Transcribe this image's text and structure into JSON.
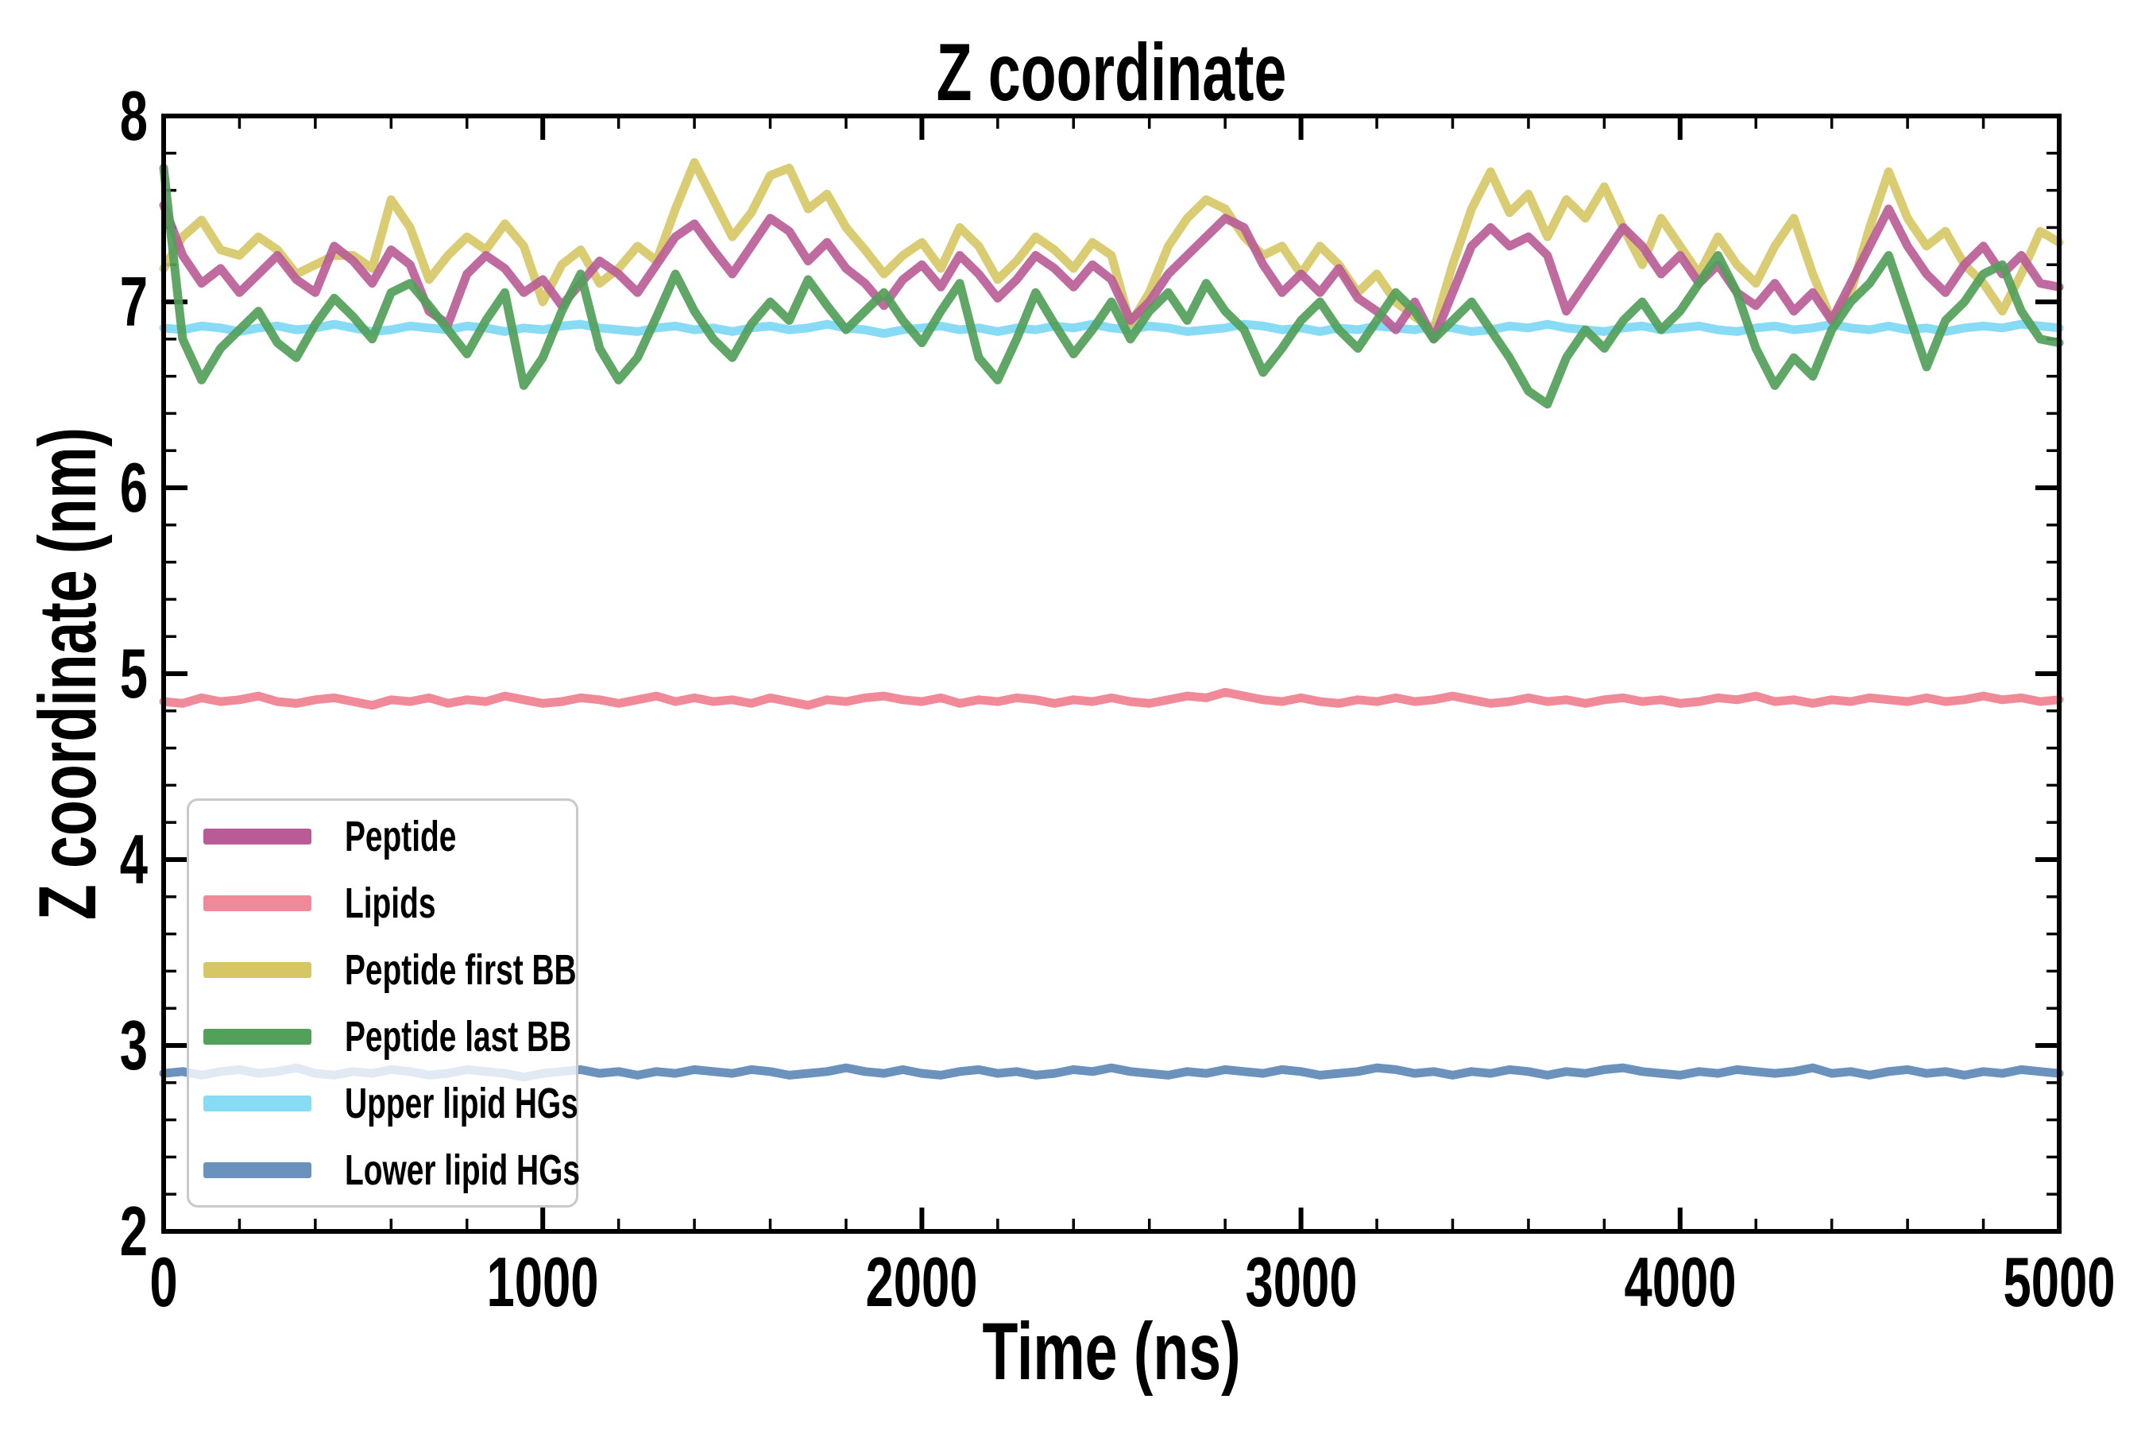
{
  "figure": {
    "background_color": "#ffffff",
    "axis_color": "#000000"
  },
  "chart_data": {
    "type": "line",
    "title": "Z coordinate",
    "xlabel": "Time (ns)",
    "ylabel": "Z coordinate (nm)",
    "xlim": [
      0,
      5000
    ],
    "ylim": [
      2,
      8
    ],
    "xticks": [
      0,
      1000,
      2000,
      3000,
      4000,
      5000
    ],
    "yticks": [
      2,
      3,
      4,
      5,
      6,
      7,
      8
    ],
    "x_minor_step": 200,
    "y_minor_step": 0.2,
    "grid": false,
    "legend_position": "lower left",
    "x_step": 50,
    "line_width": 11,
    "draw_order": [
      "Lipids",
      "Lower lipid HGs",
      "Upper lipid HGs",
      "Peptide first BB",
      "Peptide",
      "Peptide last BB"
    ],
    "series": [
      {
        "name": "Peptide",
        "color": "#b85b96",
        "opacity": 0.9,
        "values": [
          7.52,
          7.25,
          7.1,
          7.18,
          7.05,
          7.15,
          7.25,
          7.12,
          7.05,
          7.3,
          7.22,
          7.1,
          7.28,
          7.2,
          6.95,
          6.88,
          7.15,
          7.25,
          7.18,
          7.05,
          7.12,
          6.98,
          7.1,
          7.22,
          7.15,
          7.05,
          7.2,
          7.35,
          7.42,
          7.28,
          7.15,
          7.3,
          7.45,
          7.38,
          7.22,
          7.32,
          7.18,
          7.1,
          6.98,
          7.12,
          7.2,
          7.08,
          7.25,
          7.15,
          7.02,
          7.12,
          7.25,
          7.18,
          7.08,
          7.2,
          7.12,
          6.9,
          7.0,
          7.15,
          7.25,
          7.35,
          7.45,
          7.4,
          7.2,
          7.05,
          7.15,
          7.05,
          7.18,
          7.02,
          6.95,
          6.85,
          7.0,
          6.8,
          7.05,
          7.3,
          7.4,
          7.3,
          7.35,
          7.25,
          6.95,
          7.1,
          7.25,
          7.4,
          7.3,
          7.15,
          7.25,
          7.1,
          7.2,
          7.05,
          6.98,
          7.1,
          6.95,
          7.05,
          6.9,
          7.1,
          7.3,
          7.5,
          7.3,
          7.15,
          7.05,
          7.2,
          7.3,
          7.15,
          7.25,
          7.1,
          7.08
        ]
      },
      {
        "name": "Lipids",
        "color": "#f08a98",
        "opacity": 1,
        "values": [
          4.85,
          4.84,
          4.87,
          4.85,
          4.86,
          4.88,
          4.85,
          4.84,
          4.86,
          4.87,
          4.85,
          4.83,
          4.86,
          4.85,
          4.87,
          4.84,
          4.86,
          4.85,
          4.88,
          4.86,
          4.84,
          4.85,
          4.87,
          4.86,
          4.84,
          4.86,
          4.88,
          4.85,
          4.87,
          4.85,
          4.86,
          4.84,
          4.87,
          4.85,
          4.83,
          4.86,
          4.85,
          4.87,
          4.88,
          4.86,
          4.85,
          4.87,
          4.84,
          4.86,
          4.85,
          4.87,
          4.86,
          4.84,
          4.86,
          4.85,
          4.87,
          4.85,
          4.84,
          4.86,
          4.88,
          4.87,
          4.9,
          4.88,
          4.86,
          4.85,
          4.87,
          4.85,
          4.84,
          4.86,
          4.85,
          4.87,
          4.85,
          4.86,
          4.88,
          4.86,
          4.84,
          4.85,
          4.87,
          4.85,
          4.86,
          4.84,
          4.86,
          4.87,
          4.85,
          4.86,
          4.84,
          4.85,
          4.87,
          4.86,
          4.88,
          4.85,
          4.86,
          4.84,
          4.86,
          4.85,
          4.87,
          4.86,
          4.85,
          4.87,
          4.85,
          4.86,
          4.88,
          4.86,
          4.87,
          4.85,
          4.86
        ]
      },
      {
        "name": "Peptide first BB",
        "color": "#d6c664",
        "opacity": 0.9,
        "values": [
          7.18,
          7.35,
          7.44,
          7.28,
          7.25,
          7.35,
          7.28,
          7.15,
          7.2,
          7.25,
          7.25,
          7.18,
          7.55,
          7.4,
          7.12,
          7.25,
          7.35,
          7.28,
          7.42,
          7.3,
          7.0,
          7.2,
          7.28,
          7.1,
          7.18,
          7.3,
          7.22,
          7.5,
          7.75,
          7.55,
          7.35,
          7.48,
          7.68,
          7.72,
          7.5,
          7.58,
          7.4,
          7.28,
          7.15,
          7.25,
          7.32,
          7.18,
          7.4,
          7.3,
          7.12,
          7.22,
          7.35,
          7.28,
          7.18,
          7.32,
          7.25,
          6.88,
          7.05,
          7.3,
          7.45,
          7.55,
          7.5,
          7.35,
          7.25,
          7.3,
          7.15,
          7.3,
          7.2,
          7.05,
          7.15,
          7.0,
          6.92,
          6.85,
          7.2,
          7.5,
          7.7,
          7.48,
          7.58,
          7.35,
          7.55,
          7.45,
          7.62,
          7.4,
          7.2,
          7.45,
          7.3,
          7.15,
          7.35,
          7.2,
          7.1,
          7.3,
          7.45,
          7.15,
          6.9,
          7.05,
          7.4,
          7.7,
          7.45,
          7.3,
          7.38,
          7.2,
          7.1,
          6.95,
          7.15,
          7.38,
          7.32
        ]
      },
      {
        "name": "Peptide last BB",
        "color": "#52a05a",
        "opacity": 0.92,
        "values": [
          7.72,
          6.8,
          6.58,
          6.75,
          6.85,
          6.95,
          6.78,
          6.7,
          6.88,
          7.02,
          6.92,
          6.8,
          7.05,
          7.1,
          6.98,
          6.85,
          6.72,
          6.9,
          7.05,
          6.55,
          6.7,
          6.95,
          7.15,
          6.75,
          6.58,
          6.7,
          6.92,
          7.15,
          6.95,
          6.8,
          6.7,
          6.88,
          7.0,
          6.9,
          7.12,
          6.98,
          6.85,
          6.95,
          7.05,
          6.9,
          6.78,
          6.95,
          7.1,
          6.7,
          6.58,
          6.8,
          7.05,
          6.88,
          6.72,
          6.85,
          7.0,
          6.8,
          6.95,
          7.05,
          6.9,
          7.1,
          6.95,
          6.85,
          6.62,
          6.75,
          6.9,
          7.0,
          6.85,
          6.75,
          6.9,
          7.05,
          6.95,
          6.8,
          6.9,
          7.0,
          6.85,
          6.7,
          6.52,
          6.45,
          6.7,
          6.85,
          6.75,
          6.9,
          7.0,
          6.85,
          6.95,
          7.1,
          7.25,
          7.05,
          6.75,
          6.55,
          6.7,
          6.6,
          6.85,
          7.0,
          7.1,
          7.25,
          6.95,
          6.65,
          6.9,
          7.0,
          7.15,
          7.2,
          6.95,
          6.8,
          6.78
        ]
      },
      {
        "name": "Upper lipid HGs",
        "color": "#87dbf4",
        "opacity": 1,
        "values": [
          6.86,
          6.85,
          6.87,
          6.86,
          6.84,
          6.86,
          6.87,
          6.85,
          6.86,
          6.88,
          6.86,
          6.84,
          6.85,
          6.87,
          6.86,
          6.85,
          6.87,
          6.86,
          6.84,
          6.86,
          6.85,
          6.87,
          6.88,
          6.86,
          6.85,
          6.84,
          6.86,
          6.87,
          6.85,
          6.86,
          6.84,
          6.86,
          6.87,
          6.85,
          6.86,
          6.88,
          6.86,
          6.85,
          6.83,
          6.85,
          6.86,
          6.87,
          6.85,
          6.86,
          6.84,
          6.86,
          6.85,
          6.87,
          6.86,
          6.88,
          6.86,
          6.85,
          6.87,
          6.86,
          6.84,
          6.85,
          6.86,
          6.88,
          6.87,
          6.85,
          6.86,
          6.84,
          6.86,
          6.85,
          6.87,
          6.86,
          6.85,
          6.87,
          6.86,
          6.84,
          6.85,
          6.87,
          6.86,
          6.88,
          6.86,
          6.85,
          6.84,
          6.86,
          6.87,
          6.85,
          6.86,
          6.87,
          6.85,
          6.84,
          6.86,
          6.87,
          6.85,
          6.86,
          6.88,
          6.86,
          6.85,
          6.87,
          6.85,
          6.86,
          6.84,
          6.86,
          6.87,
          6.86,
          6.88,
          6.87,
          6.86
        ]
      },
      {
        "name": "Lower lipid HGs",
        "color": "#6b92bc",
        "opacity": 1,
        "values": [
          2.85,
          2.86,
          2.84,
          2.86,
          2.87,
          2.85,
          2.86,
          2.88,
          2.85,
          2.84,
          2.86,
          2.85,
          2.87,
          2.86,
          2.84,
          2.85,
          2.87,
          2.86,
          2.85,
          2.83,
          2.85,
          2.86,
          2.87,
          2.85,
          2.86,
          2.84,
          2.86,
          2.85,
          2.87,
          2.86,
          2.85,
          2.87,
          2.86,
          2.84,
          2.85,
          2.86,
          2.88,
          2.86,
          2.85,
          2.87,
          2.85,
          2.84,
          2.86,
          2.87,
          2.85,
          2.86,
          2.84,
          2.85,
          2.87,
          2.86,
          2.88,
          2.86,
          2.85,
          2.84,
          2.86,
          2.85,
          2.87,
          2.86,
          2.85,
          2.87,
          2.86,
          2.84,
          2.85,
          2.86,
          2.88,
          2.87,
          2.85,
          2.86,
          2.84,
          2.86,
          2.85,
          2.87,
          2.86,
          2.84,
          2.86,
          2.85,
          2.87,
          2.88,
          2.86,
          2.85,
          2.84,
          2.86,
          2.85,
          2.87,
          2.86,
          2.85,
          2.86,
          2.88,
          2.85,
          2.86,
          2.84,
          2.86,
          2.87,
          2.85,
          2.86,
          2.84,
          2.86,
          2.85,
          2.87,
          2.86,
          2.85
        ]
      }
    ]
  },
  "legend": {
    "items": [
      {
        "label": "Peptide",
        "color": "#b85b96"
      },
      {
        "label": "Lipids",
        "color": "#f08a98"
      },
      {
        "label": "Peptide first BB",
        "color": "#d6c664"
      },
      {
        "label": "Peptide last BB",
        "color": "#52a05a"
      },
      {
        "label": "Upper lipid HGs",
        "color": "#87dbf4"
      },
      {
        "label": "Lower lipid HGs",
        "color": "#6b92bc"
      }
    ]
  }
}
